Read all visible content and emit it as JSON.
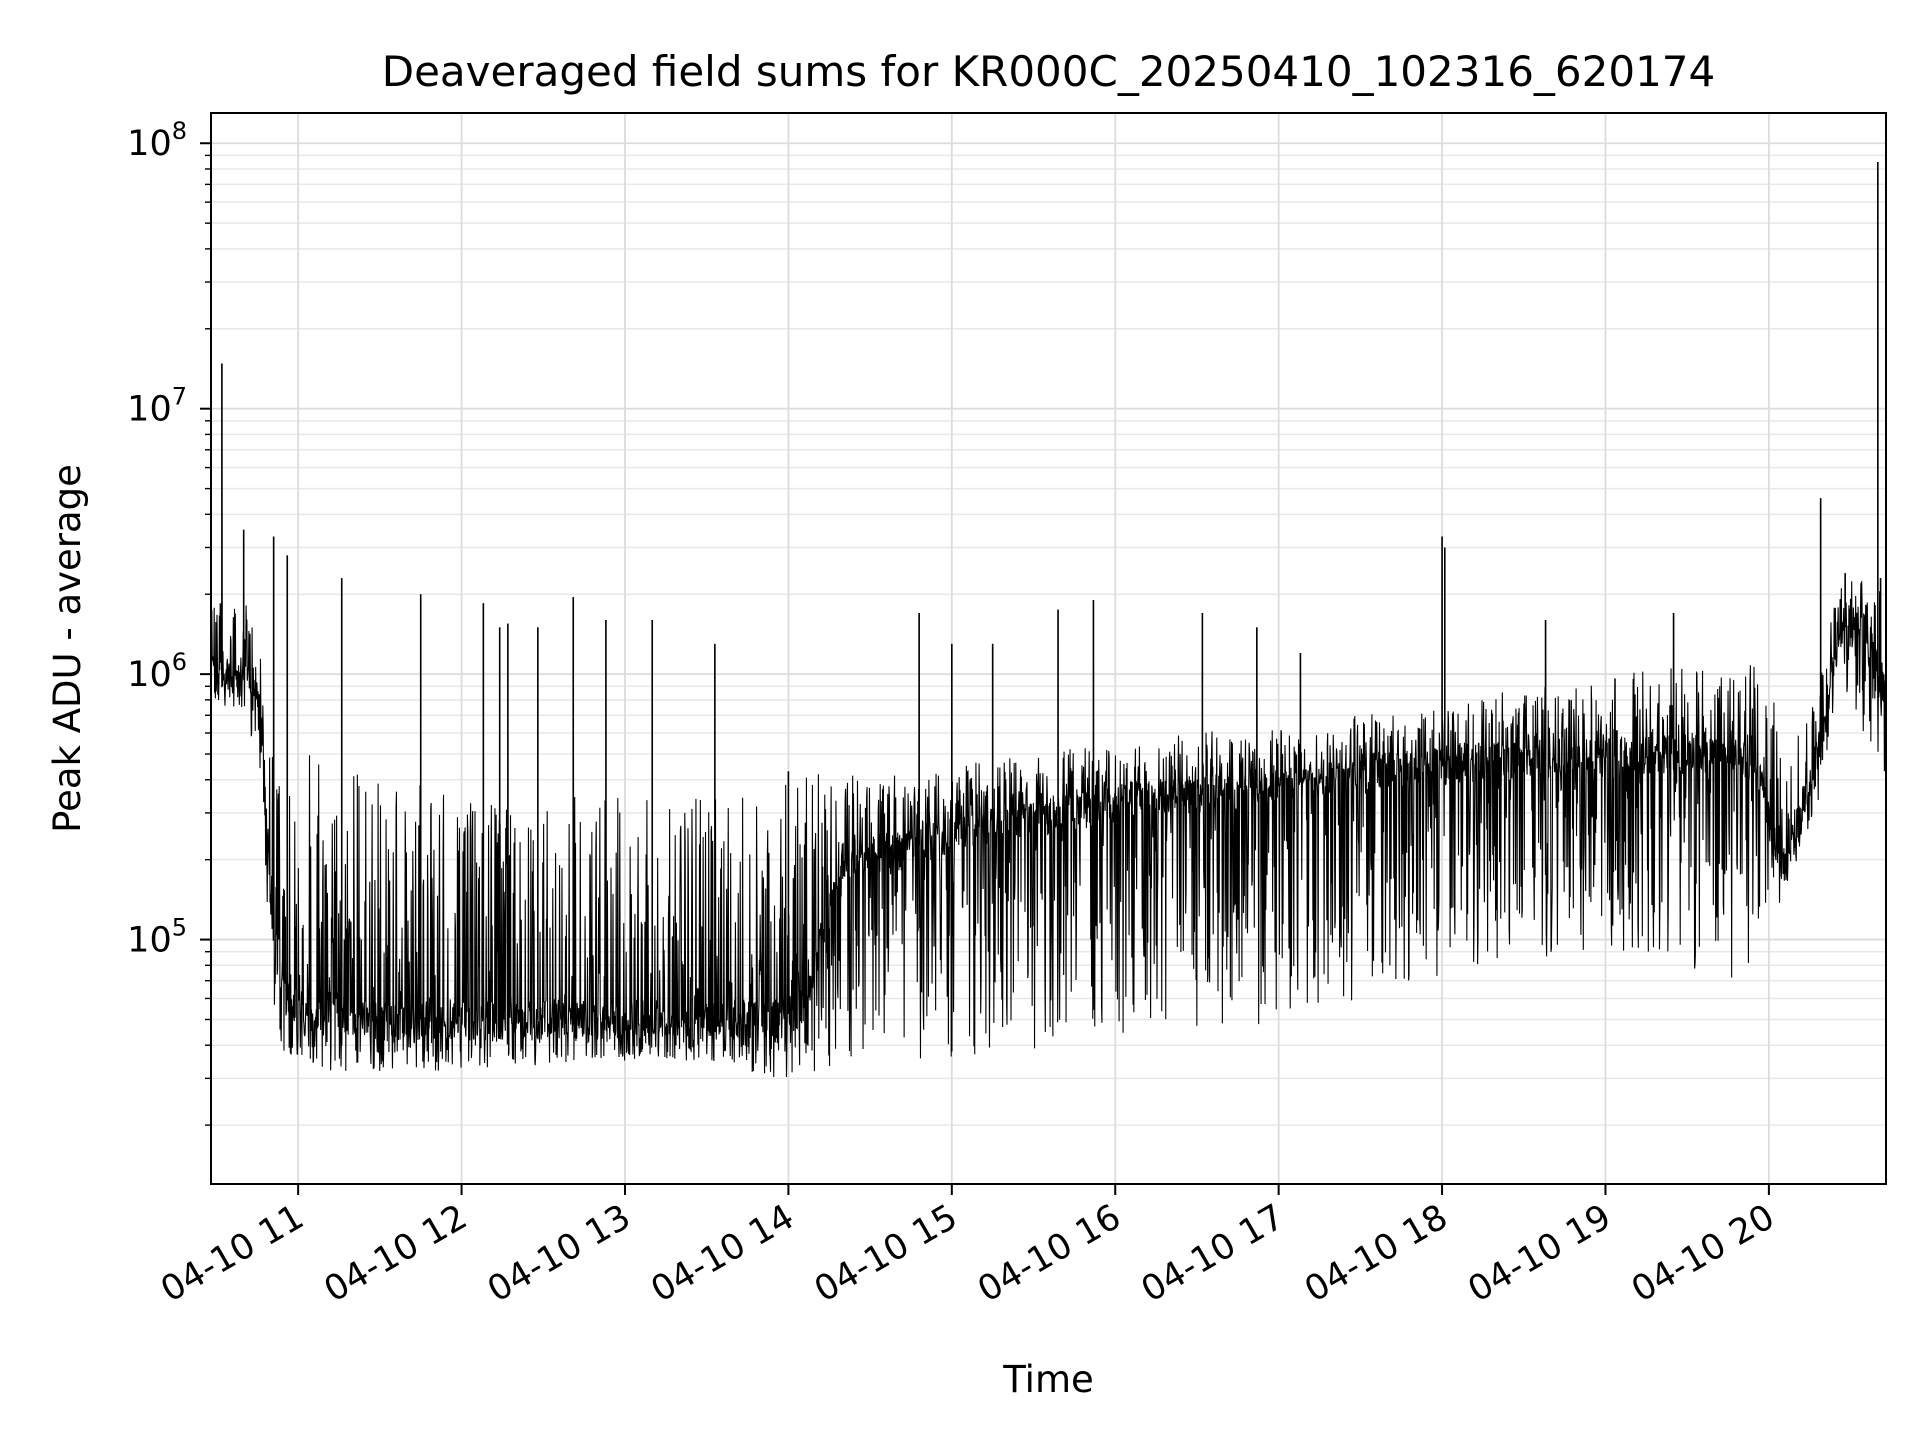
{
  "chart_data": {
    "type": "line",
    "title": "Deaveraged field sums for KR000C_20250410_102316_620174",
    "xlabel": "Time",
    "ylabel": "Peak ADU - average",
    "xscale": "time",
    "yscale": "log",
    "xlim": [
      "2025-04-10T10:28:00",
      "2025-04-10T20:43:00"
    ],
    "ylim": [
      12000,
      130000000
    ],
    "x_ticks": [
      {
        "at": "2025-04-10T11:00:00",
        "label": "04-10 11"
      },
      {
        "at": "2025-04-10T12:00:00",
        "label": "04-10 12"
      },
      {
        "at": "2025-04-10T13:00:00",
        "label": "04-10 13"
      },
      {
        "at": "2025-04-10T14:00:00",
        "label": "04-10 14"
      },
      {
        "at": "2025-04-10T15:00:00",
        "label": "04-10 15"
      },
      {
        "at": "2025-04-10T16:00:00",
        "label": "04-10 16"
      },
      {
        "at": "2025-04-10T17:00:00",
        "label": "04-10 17"
      },
      {
        "at": "2025-04-10T18:00:00",
        "label": "04-10 18"
      },
      {
        "at": "2025-04-10T19:00:00",
        "label": "04-10 19"
      },
      {
        "at": "2025-04-10T20:00:00",
        "label": "04-10 20"
      }
    ],
    "y_ticks": [
      {
        "value": 100000,
        "base": "10",
        "exp": "5"
      },
      {
        "value": 1000000,
        "base": "10",
        "exp": "6"
      },
      {
        "value": 10000000,
        "base": "10",
        "exp": "7"
      },
      {
        "value": 100000000,
        "base": "10",
        "exp": "8"
      }
    ],
    "grid": true,
    "grid_minor": true,
    "legend": "none",
    "series": [
      {
        "color": "#000000",
        "envelope": {
          "x": [
            "10:28",
            "10:40",
            "10:45",
            "10:48",
            "10:50",
            "10:55",
            "11:00",
            "11:10",
            "11:30",
            "12:00",
            "12:30",
            "13:00",
            "13:30",
            "13:55",
            "14:05",
            "14:20",
            "14:45",
            "15:00",
            "15:30",
            "16:00",
            "16:30",
            "17:00",
            "17:30",
            "18:00",
            "18:30",
            "19:00",
            "19:30",
            "19:55",
            "20:05",
            "20:15",
            "20:20",
            "20:25",
            "20:35",
            "20:43"
          ],
          "base": [
            1000000,
            1000000,
            900000,
            400000,
            120000,
            60000,
            55000,
            55000,
            50000,
            50000,
            50000,
            50000,
            50000,
            50000,
            55000,
            200000,
            220000,
            250000,
            280000,
            330000,
            350000,
            380000,
            420000,
            450000,
            480000,
            480000,
            500000,
            480000,
            180000,
            380000,
            600000,
            1500000,
            1500000,
            800000
          ],
          "high": [
            1800000,
            2000000,
            1500000,
            900000,
            500000,
            500000,
            500000,
            500000,
            450000,
            350000,
            350000,
            350000,
            350000,
            380000,
            420000,
            420000,
            420000,
            450000,
            500000,
            550000,
            600000,
            650000,
            700000,
            750000,
            900000,
            1000000,
            1100000,
            1100000,
            700000,
            700000,
            1200000,
            2200000,
            2300000,
            2000000
          ],
          "low": [
            800000,
            700000,
            500000,
            150000,
            60000,
            35000,
            35000,
            32000,
            32000,
            32000,
            33000,
            35000,
            35000,
            30000,
            30000,
            35000,
            35000,
            35000,
            38000,
            40000,
            45000,
            48000,
            60000,
            70000,
            80000,
            90000,
            80000,
            60000,
            150000,
            250000,
            400000,
            900000,
            600000,
            400000
          ]
        },
        "x": [
          "10:32",
          "10:40",
          "10:51",
          "10:56",
          "11:16",
          "11:45",
          "12:08",
          "12:14",
          "12:17",
          "12:28",
          "12:41",
          "12:53",
          "13:10",
          "13:33",
          "14:00",
          "14:48",
          "15:00",
          "15:15",
          "15:39",
          "15:52",
          "16:32",
          "16:52",
          "17:08",
          "18:00",
          "18:01",
          "18:38",
          "19:25",
          "20:19",
          "20:28",
          "20:40",
          "20:41"
        ],
        "values": [
          14800000,
          3500000,
          3300000,
          2800000,
          2300000,
          2000000,
          1850000,
          1500000,
          1550000,
          1500000,
          1950000,
          1600000,
          1600000,
          1300000,
          430000,
          1700000,
          1300000,
          1300000,
          1750000,
          1900000,
          1700000,
          1500000,
          1200000,
          3300000,
          3000000,
          1600000,
          1700000,
          4600000,
          2400000,
          85000000,
          2300000
        ]
      }
    ]
  }
}
